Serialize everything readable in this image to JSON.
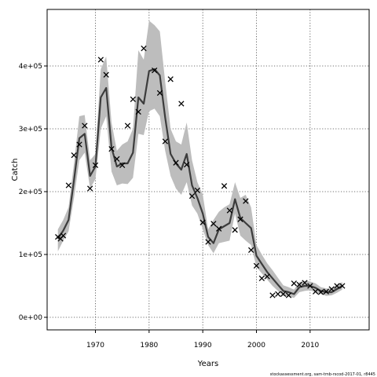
{
  "chart_data": {
    "type": "line",
    "xlabel": "Years",
    "ylabel": "Catch",
    "xlim": [
      1961,
      2021
    ],
    "ylim": [
      -20000,
      490000
    ],
    "x_ticks": [
      1970,
      1980,
      1990,
      2000,
      2010
    ],
    "x_tick_labels": [
      "1970",
      "1980",
      "1990",
      "2000",
      "2010"
    ],
    "y_ticks": [
      0,
      100000,
      200000,
      300000,
      400000
    ],
    "y_tick_labels": [
      "0e+00",
      "1e+05",
      "2e+05",
      "3e+05",
      "4e+05"
    ],
    "grid": true,
    "footer": "stockassessment.org, sam-tmb-rscod-2017-01, r8445",
    "years": [
      1963,
      1964,
      1965,
      1966,
      1967,
      1968,
      1969,
      1970,
      1971,
      1972,
      1973,
      1974,
      1975,
      1976,
      1977,
      1978,
      1979,
      1980,
      1981,
      1982,
      1983,
      1984,
      1985,
      1986,
      1987,
      1988,
      1989,
      1990,
      1991,
      1992,
      1993,
      1994,
      1995,
      1996,
      1997,
      1998,
      1999,
      2000,
      2001,
      2002,
      2003,
      2004,
      2005,
      2006,
      2007,
      2008,
      2009,
      2010,
      2011,
      2012,
      2013,
      2014,
      2015,
      2016
    ],
    "series": [
      {
        "kind": "estimate",
        "values": [
          125000,
          138000,
          155000,
          218000,
          285000,
          292000,
          225000,
          240000,
          350000,
          365000,
          270000,
          240000,
          245000,
          245000,
          262000,
          350000,
          340000,
          392000,
          395000,
          385000,
          318000,
          260000,
          245000,
          235000,
          260000,
          210000,
          190000,
          165000,
          128000,
          118000,
          140000,
          145000,
          150000,
          188000,
          158000,
          150000,
          142000,
          98000,
          85000,
          72000,
          62000,
          52000,
          42000,
          40000,
          37000,
          48000,
          50000,
          50000,
          47000,
          42000,
          40000,
          40000,
          45000,
          50000
        ],
        "upper": [
          140000,
          155000,
          175000,
          245000,
          320000,
          322000,
          250000,
          260000,
          395000,
          415000,
          310000,
          265000,
          275000,
          280000,
          300000,
          425000,
          410000,
          472000,
          465000,
          455000,
          375000,
          300000,
          280000,
          275000,
          310000,
          250000,
          215000,
          195000,
          140000,
          155000,
          168000,
          175000,
          180000,
          215000,
          190000,
          195000,
          175000,
          115000,
          100000,
          86000,
          75000,
          63000,
          51000,
          48000,
          44000,
          56000,
          58000,
          57000,
          54000,
          48000,
          46000,
          46000,
          52000,
          56000
        ],
        "lower": [
          105000,
          122000,
          137000,
          190000,
          250000,
          262000,
          205000,
          220000,
          300000,
          320000,
          232000,
          210000,
          213000,
          212000,
          222000,
          292000,
          290000,
          328000,
          332000,
          320000,
          265000,
          225000,
          205000,
          195000,
          215000,
          178000,
          165000,
          140000,
          115000,
          102000,
          118000,
          120000,
          122000,
          165000,
          130000,
          122000,
          115000,
          80000,
          70000,
          60000,
          50000,
          42000,
          34000,
          33000,
          31000,
          40000,
          42000,
          43000,
          40000,
          37000,
          34000,
          35000,
          39000,
          44000
        ]
      },
      {
        "kind": "observed",
        "marker": "x",
        "x": [
          1963,
          1963.5,
          1964,
          1965,
          1966,
          1967,
          1968,
          1969,
          1970,
          1971,
          1972,
          1973,
          1974,
          1975,
          1976,
          1977,
          1978,
          1979,
          1981,
          1982,
          1983,
          1984,
          1985,
          1986,
          1987,
          1988,
          1989,
          1990,
          1991,
          1992,
          1993,
          1994,
          1995,
          1996,
          1997,
          1998,
          1999,
          2000,
          2001,
          2002,
          2003,
          2004,
          2005,
          2006,
          2007,
          2008,
          2009,
          2010,
          2011,
          2012,
          2013,
          2014,
          2015,
          2016
        ],
        "y": [
          128000,
          125000,
          130000,
          210000,
          258000,
          275000,
          305000,
          205000,
          242000,
          410000,
          386000,
          268000,
          252000,
          242000,
          305000,
          347000,
          327000,
          428000,
          393000,
          357000,
          280000,
          379000,
          246000,
          340000,
          243000,
          193000,
          202000,
          151000,
          120000,
          149000,
          141000,
          209000,
          170000,
          139000,
          156000,
          185000,
          107000,
          82000,
          62000,
          65000,
          35000,
          37000,
          37000,
          35000,
          54000,
          52000,
          55000,
          50000,
          41000,
          40000,
          41000,
          45000,
          50000,
          50000
        ]
      }
    ]
  }
}
